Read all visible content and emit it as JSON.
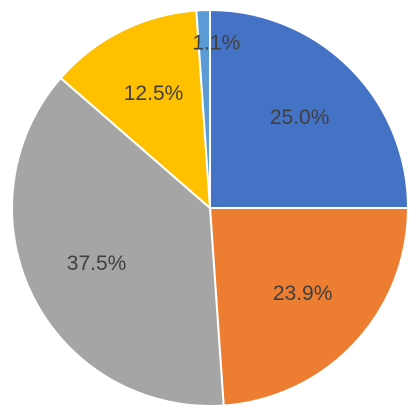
{
  "chart_data": {
    "type": "pie",
    "values": [
      25.0,
      23.9,
      37.5,
      12.5,
      1.1
    ],
    "value_labels": [
      "25.0%",
      "23.9%",
      "37.5%",
      "12.5%",
      "1.1%"
    ],
    "colors": [
      "#4472c4",
      "#ed7d31",
      "#a5a5a5",
      "#ffc000",
      "#5b9bd5"
    ]
  }
}
